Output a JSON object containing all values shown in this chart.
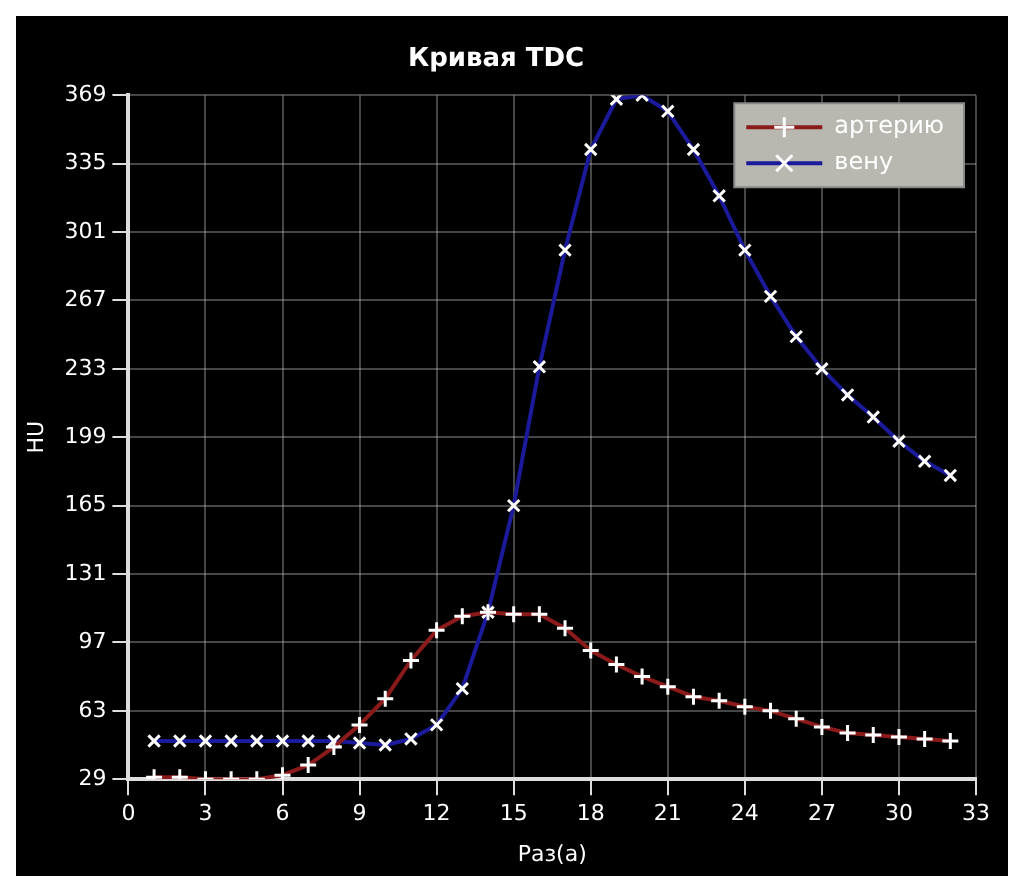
{
  "chart_data": {
    "type": "line",
    "title": "Кривая TDC",
    "xlabel": "Раз(а)",
    "ylabel": "HU",
    "x": [
      1,
      2,
      3,
      4,
      5,
      6,
      7,
      8,
      9,
      10,
      11,
      12,
      13,
      14,
      15,
      16,
      17,
      18,
      19,
      20,
      21,
      22,
      23,
      24,
      25,
      26,
      27,
      28,
      29,
      30,
      31,
      32
    ],
    "series": [
      {
        "name": "артерию",
        "color": "#8b1a1a",
        "values": [
          30,
          30,
          29,
          29,
          29,
          31,
          36,
          45,
          56,
          69,
          88,
          103,
          110,
          112,
          111,
          111,
          104,
          93,
          86,
          80,
          75,
          70,
          68,
          65,
          63,
          59,
          55,
          52,
          51,
          50,
          49,
          48
        ]
      },
      {
        "name": "вену",
        "color": "#1a1a9a",
        "values": [
          48,
          48,
          48,
          48,
          48,
          48,
          48,
          48,
          47,
          46,
          49,
          56,
          74,
          112,
          165,
          234,
          292,
          342,
          367,
          369,
          361,
          342,
          319,
          292,
          269,
          249,
          233,
          220,
          209,
          197,
          187,
          180
        ]
      }
    ],
    "xlim": [
      0,
      33
    ],
    "xticks": [
      0,
      3,
      6,
      9,
      12,
      15,
      18,
      21,
      24,
      27,
      30,
      33
    ],
    "ylim": [
      29,
      369
    ],
    "yticks": [
      29,
      63,
      97,
      131,
      165,
      199,
      233,
      267,
      301,
      335,
      369
    ],
    "grid": true,
    "legend": "top right",
    "marker": "cross",
    "line_style": "solid"
  }
}
